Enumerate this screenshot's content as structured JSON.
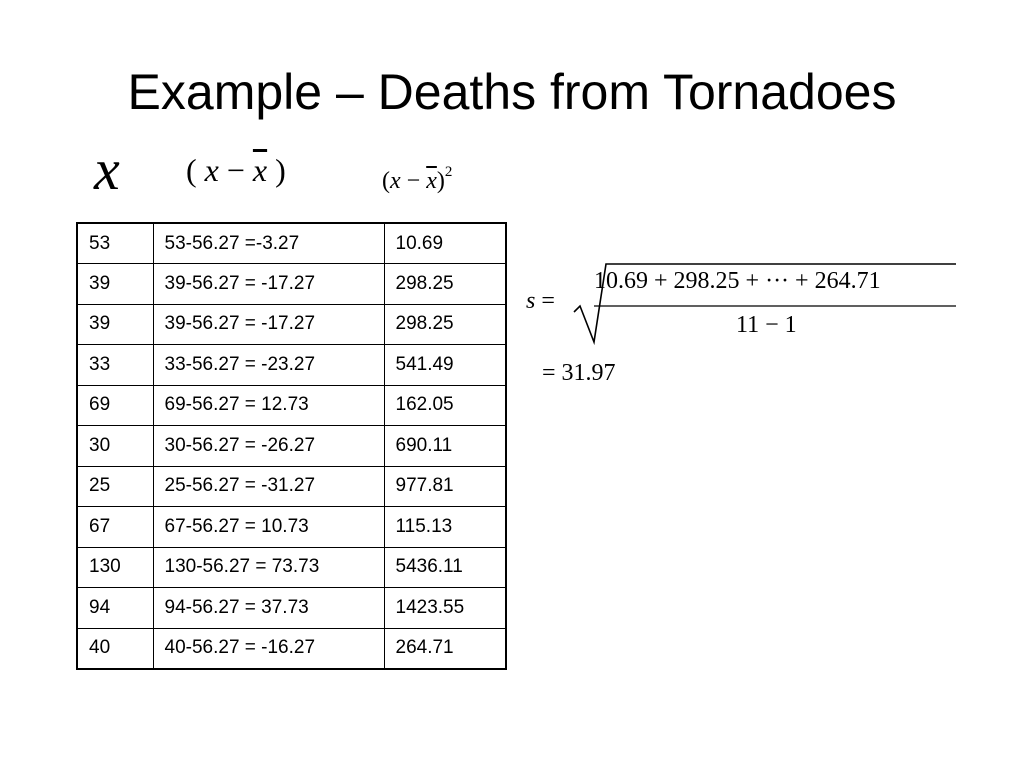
{
  "slide": {
    "title": "Example – Deaths from Tornadoes"
  },
  "column_headers": {
    "x_var": "x",
    "dev_open": "( ",
    "dev_x": "x",
    "dev_minus": " − ",
    "dev_xbar": "x",
    "dev_close": " )",
    "sq_open": "(",
    "sq_x": "x",
    "sq_minus": " − ",
    "sq_xbar": "x",
    "sq_close": ")",
    "sq_exp": "2"
  },
  "table": {
    "rows": [
      {
        "x": "53",
        "deviation": "53-56.27 =-3.27",
        "squared": "10.69"
      },
      {
        "x": "39",
        "deviation": "39-56.27 = -17.27",
        "squared": "298.25"
      },
      {
        "x": "39",
        "deviation": "39-56.27 = -17.27",
        "squared": "298.25"
      },
      {
        "x": "33",
        "deviation": "33-56.27 = -23.27",
        "squared": "541.49"
      },
      {
        "x": "69",
        "deviation": "69-56.27 = 12.73",
        "squared": "162.05"
      },
      {
        "x": "30",
        "deviation": "30-56.27 = -26.27",
        "squared": "690.11"
      },
      {
        "x": "25",
        "deviation": "25-56.27 = -31.27",
        "squared": "977.81"
      },
      {
        "x": "67",
        "deviation": "67-56.27 = 10.73",
        "squared": "115.13"
      },
      {
        "x": "130",
        "deviation": "130-56.27 = 73.73",
        "squared": "5436.11"
      },
      {
        "x": "94",
        "deviation": "94-56.27 = 37.73",
        "squared": "1423.55"
      },
      {
        "x": "40",
        "deviation": "40-56.27 = -16.27",
        "squared": "264.71"
      }
    ]
  },
  "formula": {
    "lhs_var": "s",
    "lhs_eq": " =",
    "numerator": "10.69 + 298.25 + ··· + 264.71",
    "denominator": "11 − 1",
    "result": "= 31.97"
  }
}
